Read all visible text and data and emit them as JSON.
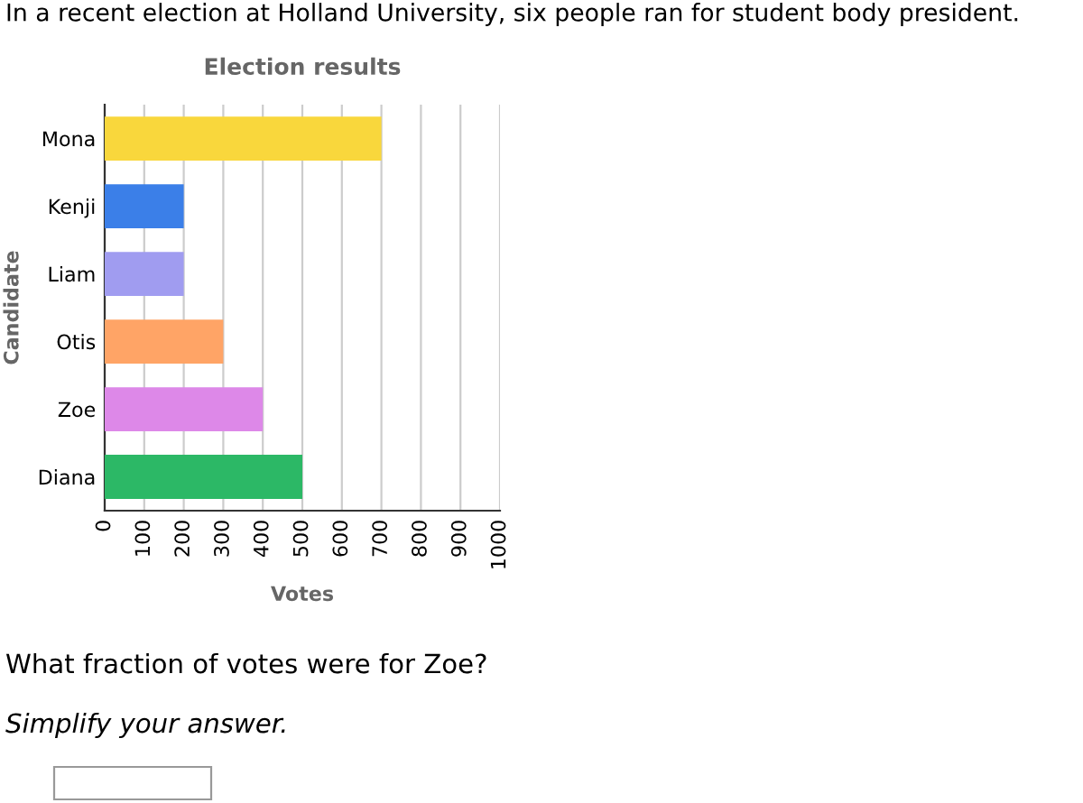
{
  "chart_data": {
    "type": "bar",
    "orientation": "horizontal",
    "title": "Election results",
    "xlabel": "Votes",
    "ylabel": "Candidate",
    "categories": [
      "Mona",
      "Kenji",
      "Liam",
      "Otis",
      "Zoe",
      "Diana"
    ],
    "values": [
      700,
      200,
      200,
      300,
      400,
      500
    ],
    "colors": [
      "#f9d73c",
      "#3b7fe8",
      "#a09cf0",
      "#ffa466",
      "#dd88e8",
      "#2cb866"
    ],
    "xlim": [
      0,
      1000
    ],
    "xticks": [
      0,
      100,
      200,
      300,
      400,
      500,
      600,
      700,
      800,
      900,
      1000
    ],
    "grid": "x",
    "legend": false,
    "annotations": [
      "In a recent election at Holland University, six people ran for student body president.",
      "What fraction of votes were for Zoe?",
      "Simplify your answer."
    ]
  }
}
